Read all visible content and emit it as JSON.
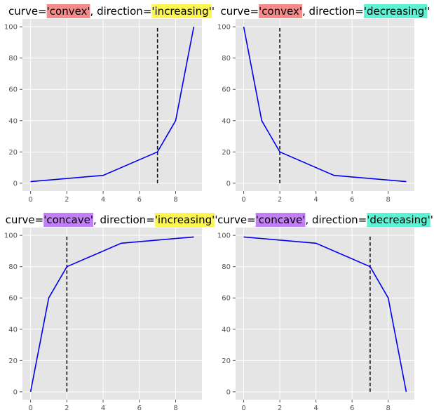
{
  "chart_data": [
    {
      "type": "line",
      "title_parts": [
        {
          "text": "curve="
        },
        {
          "text": "'convex'",
          "highlight": "#f58a8a"
        },
        {
          "text": ", direction="
        },
        {
          "text": "'increasing'",
          "highlight": "#fdf551"
        },
        {
          "text": "'"
        }
      ],
      "x": [
        0,
        4,
        7,
        8,
        9
      ],
      "y": [
        1,
        5,
        20,
        40,
        100
      ],
      "knee_x": 7,
      "xlim": [
        -0.45,
        9.45
      ],
      "ylim": [
        -5,
        105
      ],
      "xticks": [
        0,
        2,
        4,
        6,
        8
      ],
      "yticks": [
        0,
        20,
        40,
        60,
        80,
        100
      ],
      "line_color": "#0000ee",
      "grid": true
    },
    {
      "type": "line",
      "title_parts": [
        {
          "text": "curve="
        },
        {
          "text": "'convex'",
          "highlight": "#f58a8a"
        },
        {
          "text": ", direction="
        },
        {
          "text": "'decreasing'",
          "highlight": "#5cf2d3"
        },
        {
          "text": "'"
        }
      ],
      "x": [
        0,
        1,
        2,
        5,
        9
      ],
      "y": [
        100,
        40,
        20,
        5,
        1
      ],
      "knee_x": 2,
      "xlim": [
        -0.45,
        9.45
      ],
      "ylim": [
        -5,
        105
      ],
      "xticks": [
        0,
        2,
        4,
        6,
        8
      ],
      "yticks": [
        0,
        20,
        40,
        60,
        80,
        100
      ],
      "line_color": "#0000ee",
      "grid": true
    },
    {
      "type": "line",
      "title_parts": [
        {
          "text": "curve="
        },
        {
          "text": "'concave'",
          "highlight": "#c27ef5"
        },
        {
          "text": ", direction="
        },
        {
          "text": "'increasing'",
          "highlight": "#fdf551"
        },
        {
          "text": "'"
        }
      ],
      "x": [
        0,
        1,
        2,
        5,
        9
      ],
      "y": [
        0,
        60,
        80,
        95,
        99
      ],
      "knee_x": 2,
      "xlim": [
        -0.45,
        9.45
      ],
      "ylim": [
        -5,
        105
      ],
      "xticks": [
        0,
        2,
        4,
        6,
        8
      ],
      "yticks": [
        0,
        20,
        40,
        60,
        80,
        100
      ],
      "line_color": "#0000ee",
      "grid": true
    },
    {
      "type": "line",
      "title_parts": [
        {
          "text": "curve="
        },
        {
          "text": "'concave'",
          "highlight": "#c27ef5"
        },
        {
          "text": ", direction="
        },
        {
          "text": "'decreasing'",
          "highlight": "#5cf2d3"
        },
        {
          "text": "'"
        }
      ],
      "x": [
        0,
        4,
        7,
        8,
        9
      ],
      "y": [
        99,
        95,
        80,
        60,
        0
      ],
      "knee_x": 7,
      "xlim": [
        -0.45,
        9.45
      ],
      "ylim": [
        -5,
        105
      ],
      "xticks": [
        0,
        2,
        4,
        6,
        8
      ],
      "yticks": [
        0,
        20,
        40,
        60,
        80,
        100
      ],
      "line_color": "#0000ee",
      "grid": true
    }
  ]
}
